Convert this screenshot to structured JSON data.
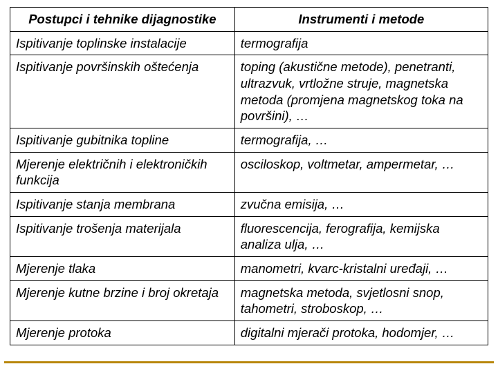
{
  "table": {
    "headers": [
      "Postupci i tehnike dijagnostike",
      "Instrumenti i metode"
    ],
    "rows": [
      [
        "Ispitivanje toplinske instalacije",
        "termografija"
      ],
      [
        "Ispitivanje površinskih oštećenja",
        "toping (akustične metode), penetranti, ultrazvuk, vrtložne struje, magnetska metoda (promjena magnetskog toka na površini), …"
      ],
      [
        "Ispitivanje gubitnika topline",
        "termografija, …"
      ],
      [
        "Mjerenje električnih i elektroničkih funkcija",
        "osciloskop, voltmetar, ampermetar, …"
      ],
      [
        "Ispitivanje stanja membrana",
        "zvučna emisija, …"
      ],
      [
        "Ispitivanje trošenja materijala",
        "fluorescencija, ferografija, kemijska analiza ulja, …"
      ],
      [
        "Mjerenje tlaka",
        "manometri, kvarc-kristalni uređaji, …"
      ],
      [
        "Mjerenje kutne brzine i broj okretaja",
        "magnetska metoda, svjetlosni snop, tahometri, stroboskop, …"
      ],
      [
        "Mjerenje protoka",
        "digitalni mjerači protoka, hodomjer, …"
      ]
    ],
    "border_color": "#000000",
    "rule_color": "#b8860b",
    "font_family": "Arial",
    "font_style": "italic",
    "header_fontsize": 19,
    "cell_fontsize": 18.5,
    "col_widths_pct": [
      47,
      53
    ],
    "background_color": "#ffffff"
  }
}
